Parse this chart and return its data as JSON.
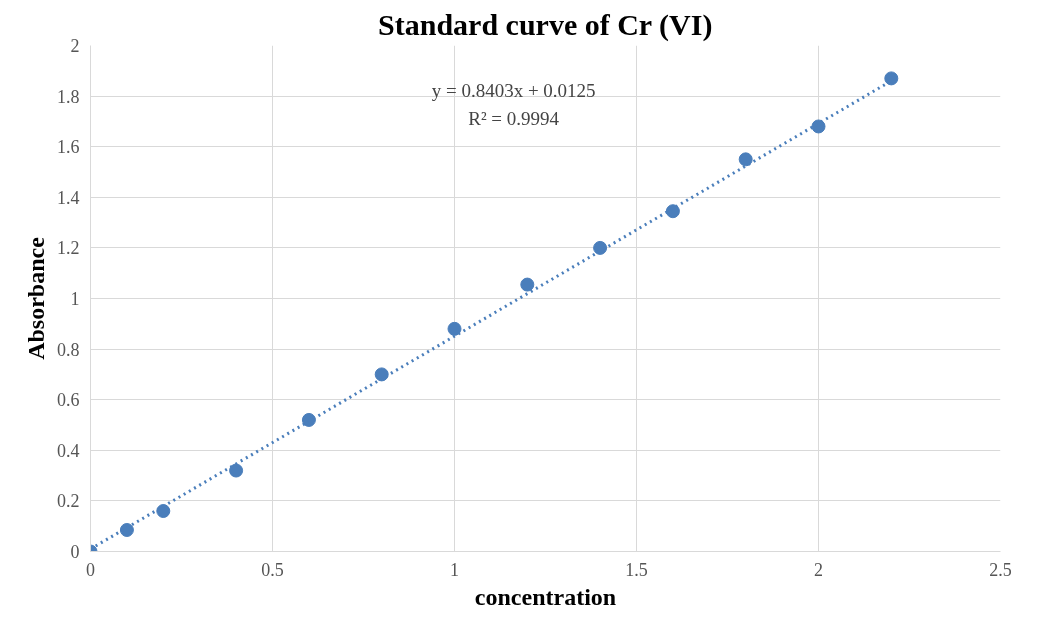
{
  "chart_data": {
    "type": "scatter",
    "title": "Standard curve of Cr (VI)",
    "xlabel": "concentration",
    "ylabel": "Absorbance",
    "x": [
      0,
      0.1,
      0.2,
      0.4,
      0.6,
      0.8,
      1.0,
      1.2,
      1.4,
      1.6,
      1.8,
      2.0,
      2.2
    ],
    "series": [
      {
        "color": "#4a7ebb",
        "values": [
          0,
          0.085,
          0.16,
          0.32,
          0.52,
          0.7,
          0.88,
          1.055,
          1.2,
          1.345,
          1.55,
          1.68,
          1.87
        ]
      },
      {
        "type": "line",
        "color": "#4a7ebb",
        "x": [
          0,
          2.2
        ],
        "values": [
          0.01,
          1.86
        ],
        "line_style": "dotted",
        "marker": "none"
      }
    ],
    "annotations": [
      "y = 0.8403x + 0.0125",
      "R² = 0.9994"
    ],
    "xlim": [
      0,
      2.5
    ],
    "xticks": [
      0,
      0.5,
      1,
      1.5,
      2,
      2.5
    ],
    "ylim": [
      0,
      2
    ],
    "yticks": [
      0,
      0.2,
      0.4,
      0.6,
      0.8,
      1,
      1.2,
      1.4,
      1.6,
      1.8,
      2
    ],
    "grid": true,
    "marker": "circle"
  }
}
